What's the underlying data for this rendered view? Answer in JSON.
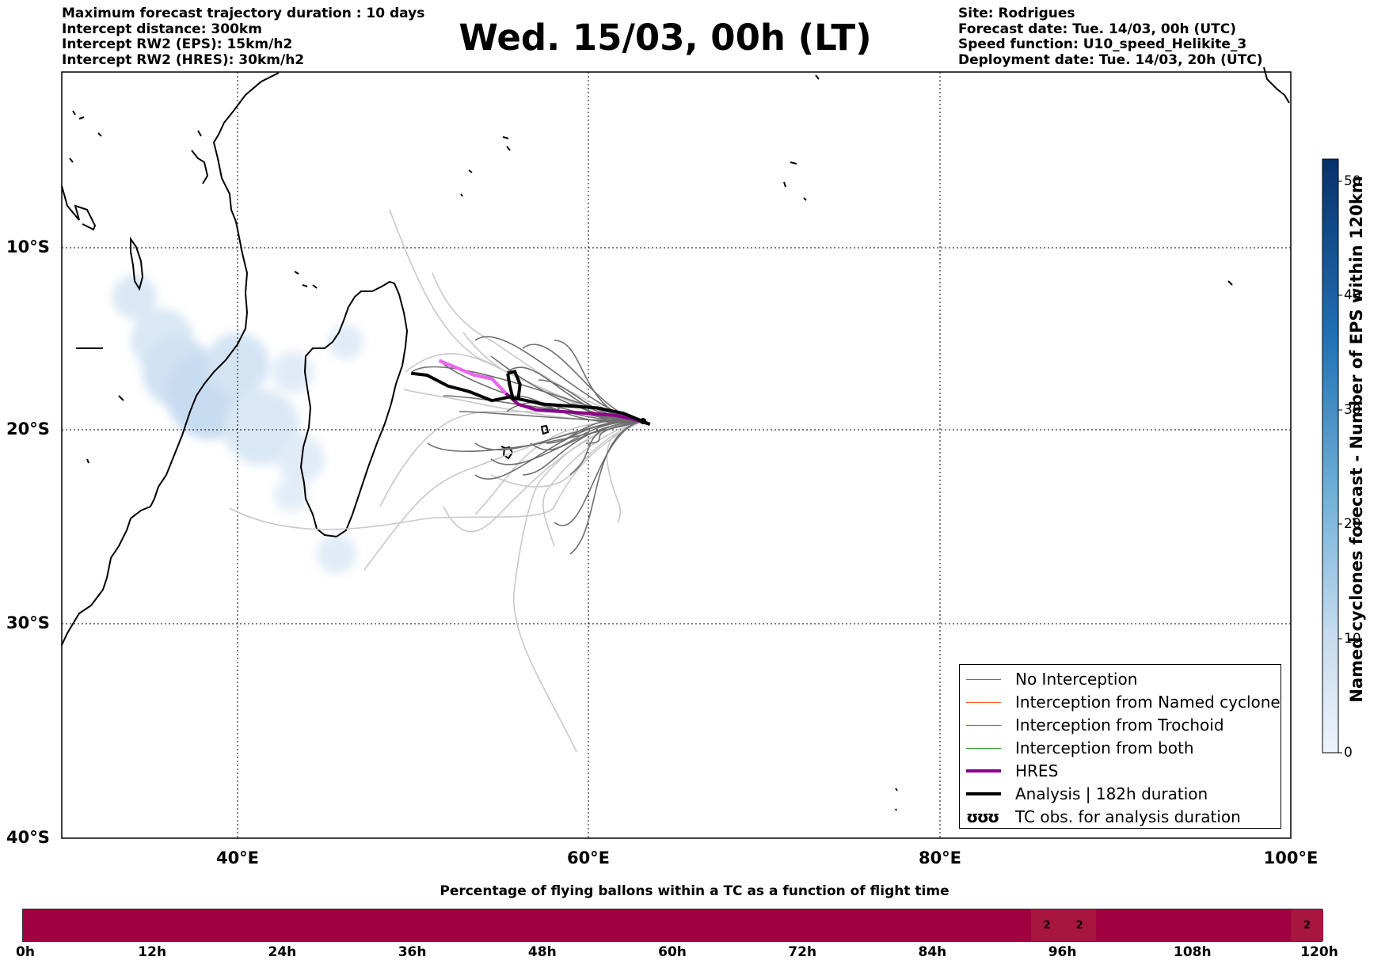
{
  "header_left": [
    "Maximum forecast trajectory duration : 10 days",
    "Intercept distance: 300km",
    "Intercept RW2 (EPS):  15km/h2",
    "Intercept RW2 (HRES): 30km/h2"
  ],
  "header_right": [
    "Site: Rodrigues",
    "Forecast date: Tue. 14/03, 00h (UTC)",
    "Speed function: U10_speed_Helikite_3",
    "Deployment date: Tue. 14/03, 20h (UTC)"
  ],
  "title": "Wed. 15/03, 00h (LT)",
  "map": {
    "lon_range": [
      30,
      100
    ],
    "lat_range": [
      -40,
      0
    ],
    "lat_labels": [
      "10°S",
      "20°S",
      "30°S",
      "40°S"
    ],
    "lon_labels": [
      "40°E",
      "60°E",
      "80°E",
      "100°E"
    ],
    "grid": "dotted"
  },
  "legend": {
    "items": [
      {
        "label": "No Interception",
        "color": "#707070"
      },
      {
        "label": "Interception from Named cyclone",
        "color": "#ff5a1e"
      },
      {
        "label": "Interception from Trochoid",
        "color": "#8c7a1e"
      },
      {
        "label": "Interception from both",
        "color": "#22a022"
      },
      {
        "label": "HRES",
        "color": "#8b008b"
      },
      {
        "label": "Analysis | 182h duration",
        "color": "#000000"
      },
      {
        "label": "TC obs. for analysis duration",
        "icon": "ʊʊʊ"
      }
    ]
  },
  "colorbar": {
    "title": "Named cyclones forecast - Number of EPS within 120km",
    "ticks": [
      "0",
      "10",
      "20",
      "30",
      "40",
      "50"
    ],
    "colors": [
      "#e8f1fa",
      "#0a3a70"
    ]
  },
  "bottom": {
    "title": "Percentage of flying ballons within a TC as a function of flight time",
    "ticks": [
      "0h",
      "12h",
      "24h",
      "36h",
      "48h",
      "60h",
      "72h",
      "84h",
      "96h",
      "108h",
      "120h"
    ],
    "cells": [
      {
        "label": "2",
        "from_h": 93,
        "to_h": 96
      },
      {
        "label": "2",
        "from_h": 96,
        "to_h": 99
      },
      {
        "label": "2",
        "from_h": 117,
        "to_h": 120
      }
    ],
    "bar_color": "#a0003e"
  },
  "chart_data": {
    "type": "map",
    "hres_track": [
      [
        51.5,
        -16.2
      ],
      [
        52.5,
        -16.6
      ],
      [
        53.5,
        -17.0
      ],
      [
        54.5,
        -17.2
      ],
      [
        55.3,
        -18.0
      ],
      [
        56.0,
        -18.6
      ],
      [
        57.0,
        -18.9
      ],
      [
        58.5,
        -19.0
      ],
      [
        60.0,
        -19.1
      ],
      [
        61.5,
        -19.2
      ],
      [
        62.5,
        -19.4
      ],
      [
        63.5,
        -19.7
      ]
    ],
    "analysis_track": [
      [
        49.9,
        -16.9
      ],
      [
        50.8,
        -17.0
      ],
      [
        52.0,
        -17.6
      ],
      [
        53.2,
        -17.9
      ],
      [
        54.5,
        -18.4
      ],
      [
        55.5,
        -18.2
      ],
      [
        56.0,
        -18.3
      ],
      [
        57.5,
        -18.6
      ],
      [
        59.0,
        -18.7
      ],
      [
        60.5,
        -18.8
      ],
      [
        62.0,
        -19.1
      ],
      [
        63.5,
        -19.7
      ]
    ],
    "analysis_loop": [
      [
        55.4,
        -16.9
      ],
      [
        55.8,
        -16.8
      ],
      [
        56.1,
        -17.5
      ],
      [
        56.0,
        -18.3
      ],
      [
        55.7,
        -18.3
      ],
      [
        55.5,
        -17.5
      ],
      [
        55.4,
        -16.9
      ]
    ]
  }
}
